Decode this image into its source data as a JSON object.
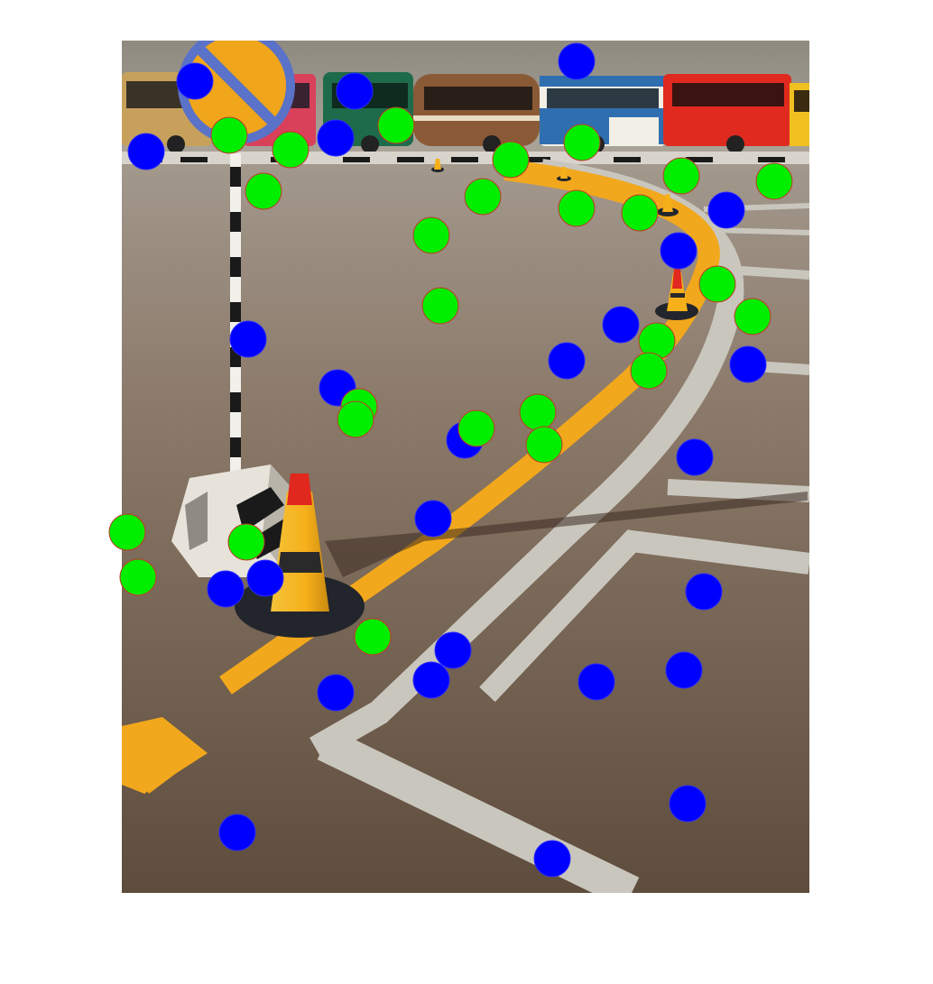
{
  "figure": {
    "subject": "painting-with-fixation-markers",
    "colors": {
      "background": "#ffffff",
      "marker_green": "#00ee00",
      "marker_blue": "#0000ff",
      "marker_outline_green": "#c0392b",
      "marker_outline_blue": "#2a2aff",
      "road_line": "#f2a81c",
      "white_line": "#c9c6bd",
      "asphalt": "#7f6e5e",
      "sky": "#9a9488"
    }
  },
  "painting": {
    "buses": [
      {
        "name": "tan-bus",
        "color": "#c7a15b"
      },
      {
        "name": "pink-bus",
        "color": "#d9405a"
      },
      {
        "name": "green-bus",
        "color": "#1d6b4a"
      },
      {
        "name": "brown-bus",
        "color": "#8a5a36"
      },
      {
        "name": "blue-white-bus",
        "color": "#2f6fb0"
      },
      {
        "name": "red-bus",
        "color": "#e02a1f"
      },
      {
        "name": "yellow-bus",
        "color": "#f0c020"
      }
    ]
  }
}
